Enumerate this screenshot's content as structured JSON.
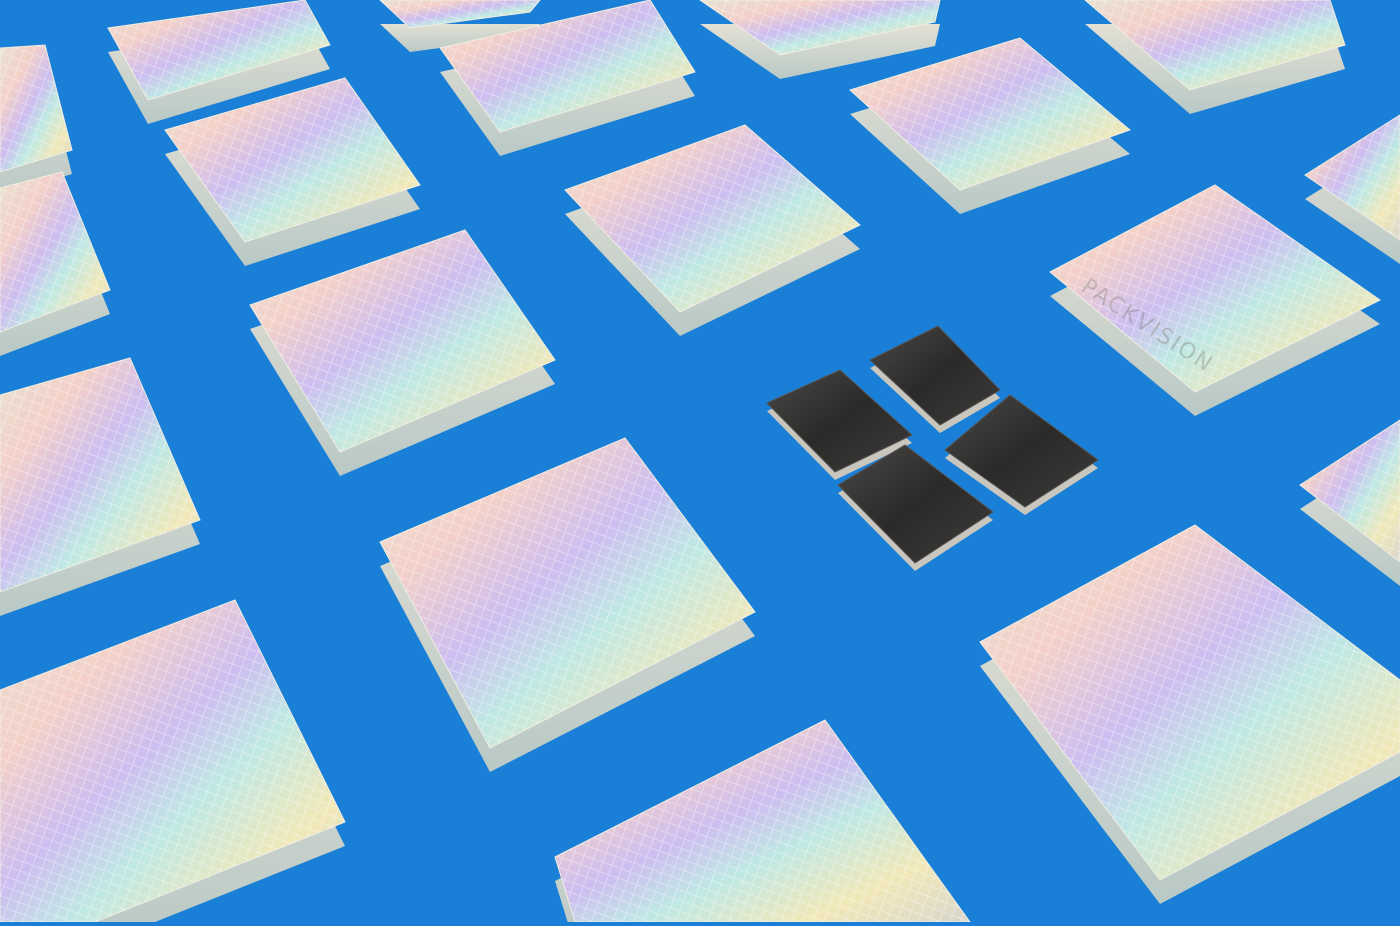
{
  "scene": {
    "description_tags": [
      "holographic-box",
      "chocolate-square"
    ],
    "background_color": "#1a7fd6",
    "box_logo_text": "PACKVISION",
    "box_count": 19,
    "chocolate_count": 4,
    "colors": {
      "holo": [
        "#e8e2d0",
        "#f4c7c8",
        "#c9b7f0",
        "#bfe9e6",
        "#f3eab2",
        "#dcd8cf"
      ],
      "chocolate": "#2e2d2c",
      "foil_edge": "#c9c6bd"
    }
  }
}
